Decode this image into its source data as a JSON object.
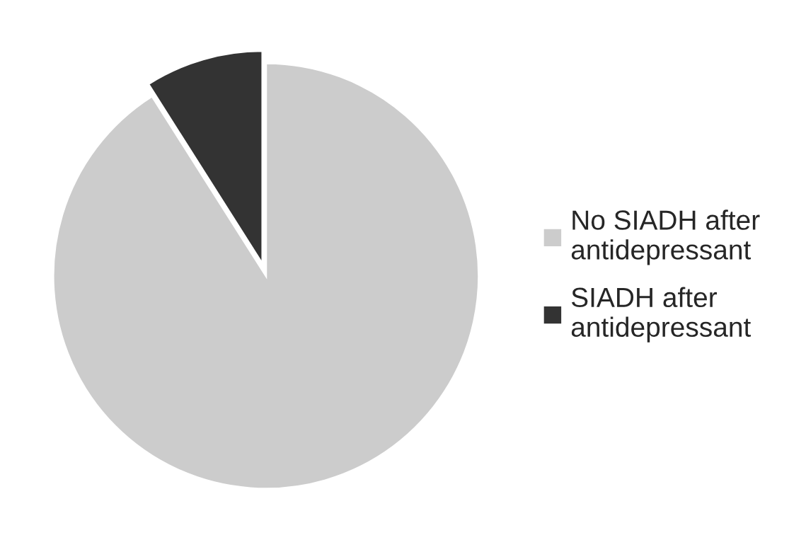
{
  "chart_data": {
    "type": "pie",
    "categories": [
      "No SIADH after antidepressant",
      "SIADH after antidepressant"
    ],
    "values": [
      91,
      9
    ],
    "colors": [
      "#cccccc",
      "#333333"
    ],
    "legend": "right"
  }
}
